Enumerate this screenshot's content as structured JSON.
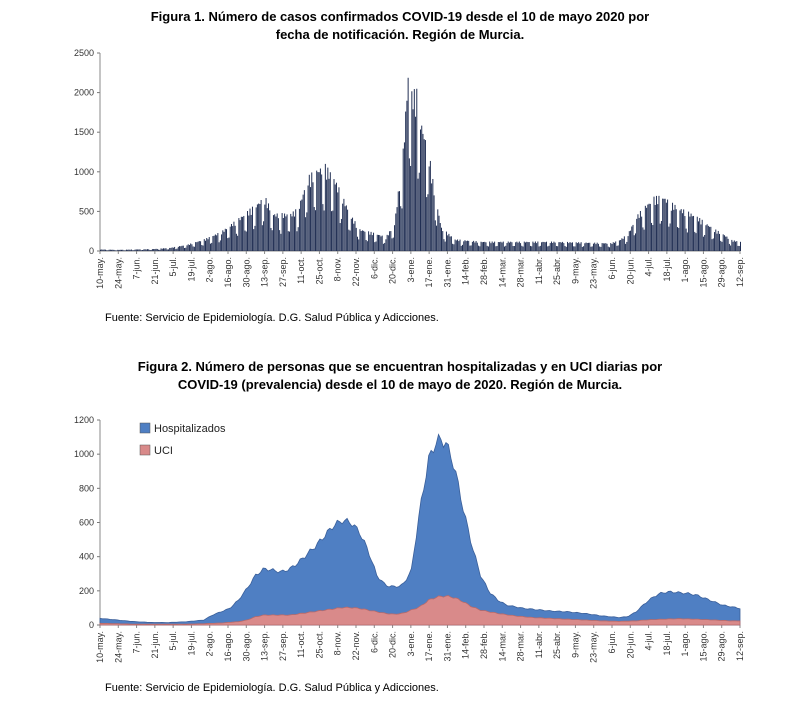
{
  "chart_data": [
    {
      "type": "bar",
      "title_line1": "Figura 1. Número de casos confirmados COVID-19 desde el 10 de mayo 2020 por",
      "title_line2": "fecha de notificación. Región de Murcia.",
      "source": "Fuente: Servicio de Epidemiología. D.G. Salud Pública y Adicciones.",
      "ylim": [
        0,
        2500
      ],
      "yticks": [
        "0",
        "500",
        "1000",
        "1500",
        "2000",
        "2500"
      ],
      "xticks": [
        "10-may.",
        "24-may.",
        "7-jun.",
        "21-jun.",
        "5-jul.",
        "19-jul.",
        "2-ago.",
        "16-ago.",
        "30-ago.",
        "13-sep.",
        "27-sep.",
        "11-oct.",
        "25-oct.",
        "8-nov.",
        "22-nov.",
        "6-dic.",
        "20-dic.",
        "3-ene.",
        "17-ene.",
        "31-ene.",
        "14-feb.",
        "28-feb.",
        "14-mar.",
        "28-mar.",
        "11-abr.",
        "25-abr.",
        "9-may.",
        "23-may.",
        "6-jun.",
        "20-jun.",
        "4-jul.",
        "18-jul.",
        "1-ago.",
        "15-ago.",
        "29-ago.",
        "12-sep."
      ],
      "color": "#1f2d52",
      "keypoints": [
        [
          0,
          20
        ],
        [
          14,
          15
        ],
        [
          28,
          20
        ],
        [
          42,
          25
        ],
        [
          56,
          40
        ],
        [
          70,
          80
        ],
        [
          84,
          150
        ],
        [
          98,
          250
        ],
        [
          112,
          420
        ],
        [
          126,
          600
        ],
        [
          133,
          700
        ],
        [
          140,
          480
        ],
        [
          154,
          480
        ],
        [
          160,
          550
        ],
        [
          168,
          950
        ],
        [
          175,
          1050
        ],
        [
          182,
          1100
        ],
        [
          189,
          950
        ],
        [
          196,
          700
        ],
        [
          203,
          450
        ],
        [
          210,
          280
        ],
        [
          224,
          220
        ],
        [
          231,
          180
        ],
        [
          238,
          350
        ],
        [
          245,
          1300
        ],
        [
          249,
          2300
        ],
        [
          252,
          2050
        ],
        [
          256,
          2050
        ],
        [
          259,
          1700
        ],
        [
          266,
          1250
        ],
        [
          270,
          800
        ],
        [
          276,
          300
        ],
        [
          287,
          150
        ],
        [
          308,
          120
        ],
        [
          336,
          120
        ],
        [
          364,
          120
        ],
        [
          392,
          110
        ],
        [
          413,
          100
        ],
        [
          420,
          140
        ],
        [
          427,
          220
        ],
        [
          434,
          450
        ],
        [
          441,
          580
        ],
        [
          448,
          690
        ],
        [
          455,
          710
        ],
        [
          462,
          620
        ],
        [
          469,
          550
        ],
        [
          476,
          500
        ],
        [
          483,
          440
        ],
        [
          490,
          360
        ],
        [
          497,
          280
        ],
        [
          504,
          220
        ],
        [
          511,
          140
        ],
        [
          518,
          120
        ]
      ]
    },
    {
      "type": "area",
      "title_line1": "Figura 2. Número de personas que se encuentran hospitalizadas  y en UCI diarias por",
      "title_line2": "COVID-19 (prevalencia)  desde el 10 de mayo de 2020. Región de Murcia.",
      "source": "Fuente: Servicio de Epidemiología. D.G. Salud Pública y Adicciones.",
      "ylim": [
        0,
        1200
      ],
      "yticks": [
        "0",
        "200",
        "400",
        "600",
        "800",
        "1000",
        "1200"
      ],
      "xticks": [
        "10-may.",
        "24-may.",
        "7-jun.",
        "21-jun.",
        "5-jul.",
        "19-jul.",
        "2-ago.",
        "16-ago.",
        "30-ago.",
        "13-sep.",
        "27-sep.",
        "11-oct.",
        "25-oct.",
        "8-nov.",
        "22-nov.",
        "6-dic.",
        "20-dic.",
        "3-ene.",
        "17-ene.",
        "31-ene.",
        "14-feb.",
        "28-feb.",
        "14-mar.",
        "28-mar.",
        "11-abr.",
        "25-abr.",
        "9-may.",
        "23-may.",
        "6-jun.",
        "20-jun.",
        "4-jul.",
        "18-jul.",
        "1-ago.",
        "15-ago.",
        "29-ago.",
        "12-sep."
      ],
      "series": [
        {
          "name": "Hospitalizados",
          "color": "#4f7fc3",
          "points": [
            [
              0,
              40
            ],
            [
              14,
              30
            ],
            [
              28,
              20
            ],
            [
              42,
              15
            ],
            [
              56,
              15
            ],
            [
              70,
              20
            ],
            [
              84,
              30
            ],
            [
              91,
              60
            ],
            [
              98,
              80
            ],
            [
              105,
              100
            ],
            [
              112,
              150
            ],
            [
              119,
              220
            ],
            [
              126,
              300
            ],
            [
              133,
              340
            ],
            [
              140,
              330
            ],
            [
              147,
              320
            ],
            [
              154,
              340
            ],
            [
              161,
              380
            ],
            [
              168,
              430
            ],
            [
              175,
              480
            ],
            [
              182,
              540
            ],
            [
              189,
              600
            ],
            [
              196,
              630
            ],
            [
              203,
              620
            ],
            [
              210,
              560
            ],
            [
              217,
              450
            ],
            [
              224,
              300
            ],
            [
              231,
              240
            ],
            [
              238,
              230
            ],
            [
              245,
              240
            ],
            [
              252,
              330
            ],
            [
              259,
              700
            ],
            [
              266,
              1000
            ],
            [
              273,
              1120
            ],
            [
              280,
              1100
            ],
            [
              287,
              950
            ],
            [
              294,
              700
            ],
            [
              301,
              480
            ],
            [
              308,
              300
            ],
            [
              315,
              200
            ],
            [
              322,
              150
            ],
            [
              329,
              120
            ],
            [
              336,
              110
            ],
            [
              343,
              100
            ],
            [
              350,
              95
            ],
            [
              364,
              85
            ],
            [
              378,
              80
            ],
            [
              392,
              70
            ],
            [
              406,
              55
            ],
            [
              420,
              45
            ],
            [
              427,
              50
            ],
            [
              434,
              80
            ],
            [
              441,
              130
            ],
            [
              448,
              170
            ],
            [
              455,
              195
            ],
            [
              462,
              200
            ],
            [
              469,
              195
            ],
            [
              476,
              190
            ],
            [
              483,
              180
            ],
            [
              490,
              160
            ],
            [
              497,
              140
            ],
            [
              504,
              120
            ],
            [
              511,
              110
            ],
            [
              518,
              100
            ]
          ]
        },
        {
          "name": "UCI",
          "color": "#d98a8a",
          "points": [
            [
              0,
              10
            ],
            [
              14,
              8
            ],
            [
              28,
              5
            ],
            [
              42,
              5
            ],
            [
              56,
              5
            ],
            [
              70,
              5
            ],
            [
              84,
              8
            ],
            [
              98,
              12
            ],
            [
              112,
              20
            ],
            [
              119,
              30
            ],
            [
              126,
              50
            ],
            [
              133,
              60
            ],
            [
              140,
              60
            ],
            [
              154,
              60
            ],
            [
              168,
              75
            ],
            [
              182,
              90
            ],
            [
              196,
              105
            ],
            [
              203,
              105
            ],
            [
              210,
              100
            ],
            [
              224,
              80
            ],
            [
              231,
              70
            ],
            [
              238,
              65
            ],
            [
              245,
              70
            ],
            [
              259,
              110
            ],
            [
              266,
              150
            ],
            [
              273,
              170
            ],
            [
              280,
              175
            ],
            [
              287,
              165
            ],
            [
              294,
              140
            ],
            [
              301,
              110
            ],
            [
              308,
              90
            ],
            [
              322,
              70
            ],
            [
              336,
              55
            ],
            [
              350,
              45
            ],
            [
              364,
              40
            ],
            [
              378,
              35
            ],
            [
              392,
              30
            ],
            [
              406,
              25
            ],
            [
              420,
              22
            ],
            [
              434,
              25
            ],
            [
              441,
              30
            ],
            [
              455,
              35
            ],
            [
              469,
              38
            ],
            [
              483,
              35
            ],
            [
              497,
              30
            ],
            [
              511,
              25
            ],
            [
              518,
              25
            ]
          ]
        }
      ]
    }
  ]
}
